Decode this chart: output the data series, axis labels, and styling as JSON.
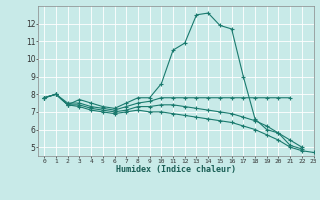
{
  "xlabel": "Humidex (Indice chaleur)",
  "background_color": "#c8eae8",
  "grid_color": "#ffffff",
  "line_color": "#1a7a6e",
  "xlim": [
    -0.5,
    23
  ],
  "ylim": [
    4.5,
    13.0
  ],
  "xtick_labels": [
    "0",
    "1",
    "2",
    "3",
    "4",
    "5",
    "6",
    "7",
    "8",
    "9",
    "10",
    "11",
    "12",
    "13",
    "14",
    "15",
    "16",
    "17",
    "18",
    "19",
    "20",
    "21",
    "22",
    "23"
  ],
  "xtick_positions": [
    0,
    1,
    2,
    3,
    4,
    5,
    6,
    7,
    8,
    9,
    10,
    11,
    12,
    13,
    14,
    15,
    16,
    17,
    18,
    19,
    20,
    21,
    22,
    23
  ],
  "ytick_positions": [
    5,
    6,
    7,
    8,
    9,
    10,
    11,
    12
  ],
  "series": [
    {
      "x": [
        0,
        1,
        2,
        3,
        4,
        5,
        6,
        7,
        8,
        9,
        10,
        11,
        12,
        13,
        14,
        15,
        16,
        17,
        18,
        19,
        20,
        21,
        22
      ],
      "y": [
        7.8,
        8.0,
        7.4,
        7.7,
        7.5,
        7.3,
        7.2,
        7.5,
        7.8,
        7.8,
        8.6,
        10.5,
        10.9,
        12.5,
        12.6,
        11.9,
        11.7,
        9.0,
        6.6,
        6.0,
        5.8,
        5.1,
        4.9
      ]
    },
    {
      "x": [
        0,
        1,
        2,
        3,
        4,
        5,
        6,
        7,
        8,
        9,
        10,
        11,
        12,
        13,
        14,
        15,
        16,
        17,
        18,
        19,
        20,
        21
      ],
      "y": [
        7.8,
        8.0,
        7.5,
        7.5,
        7.3,
        7.2,
        7.1,
        7.3,
        7.5,
        7.6,
        7.8,
        7.8,
        7.8,
        7.8,
        7.8,
        7.8,
        7.8,
        7.8,
        7.8,
        7.8,
        7.8,
        7.8
      ]
    },
    {
      "x": [
        0,
        1,
        2,
        3,
        4,
        5,
        6,
        7,
        8,
        9,
        10,
        11,
        12,
        13,
        14,
        15,
        16,
        17,
        18,
        19,
        20,
        21,
        22
      ],
      "y": [
        7.8,
        8.0,
        7.4,
        7.4,
        7.2,
        7.1,
        7.0,
        7.1,
        7.3,
        7.3,
        7.4,
        7.4,
        7.3,
        7.2,
        7.1,
        7.0,
        6.9,
        6.7,
        6.5,
        6.2,
        5.8,
        5.4,
        5.0
      ]
    },
    {
      "x": [
        0,
        1,
        2,
        3,
        4,
        5,
        6,
        7,
        8,
        9,
        10,
        11,
        12,
        13,
        14,
        15,
        16,
        17,
        18,
        19,
        20,
        21,
        22,
        23
      ],
      "y": [
        7.8,
        8.0,
        7.4,
        7.3,
        7.1,
        7.0,
        6.9,
        7.0,
        7.1,
        7.0,
        7.0,
        6.9,
        6.8,
        6.7,
        6.6,
        6.5,
        6.4,
        6.2,
        6.0,
        5.7,
        5.4,
        5.0,
        4.8,
        4.7
      ]
    }
  ]
}
